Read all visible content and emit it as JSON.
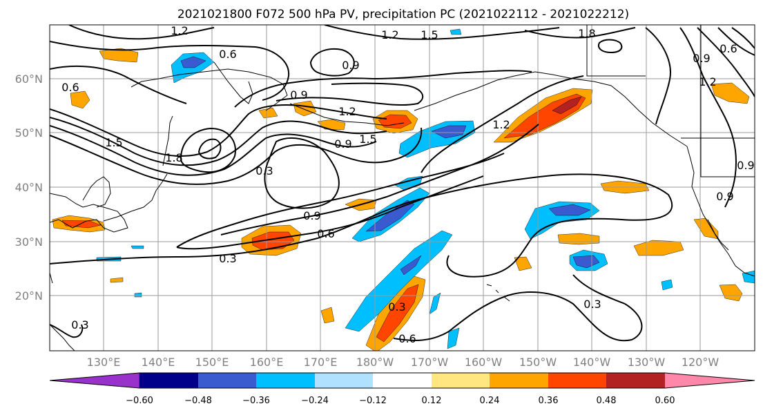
{
  "title": "2021021800 F072 500 hPa PV, precipitation PC (2021022112 - 2021022212)",
  "map": {
    "lon_ticks": [
      "130°E",
      "140°E",
      "150°E",
      "160°E",
      "170°E",
      "180°W",
      "170°W",
      "160°W",
      "150°W",
      "140°W",
      "130°W",
      "120°W"
    ],
    "lat_ticks": [
      "60°N",
      "50°N",
      "40°N",
      "30°N",
      "20°N"
    ]
  },
  "pv_contour_labels": [
    "1.2",
    "0.6",
    "1.2",
    "1.5",
    "1.8",
    "0.9",
    "0.6",
    "0.9",
    "1.2",
    "1.5",
    "0.9",
    "0.3",
    "1.2",
    "0.9",
    "0.6",
    "0.3",
    "0.3",
    "0.6",
    "0.3",
    "0.9",
    "0.6",
    "1.5",
    "1.8",
    "0.9",
    "0.9",
    "1.2",
    "0.3"
  ],
  "colorbar": {
    "colors": [
      "#9932cc",
      "#00008b",
      "#3a5bd0",
      "#00bfff",
      "#b0e2ff",
      "#ffffff",
      "#ffe680",
      "#ffa500",
      "#ff4500",
      "#b22222",
      "#ff88aa"
    ],
    "tick_labels": [
      "−0.60",
      "−0.48",
      "−0.36",
      "−0.24",
      "−0.12",
      "0.12",
      "0.24",
      "0.36",
      "0.48",
      "0.60"
    ]
  },
  "shading_colors": {
    "weak_pos": "#ffa500",
    "mid_pos": "#ff4500",
    "strong_pos": "#b22222",
    "weak_neg": "#00bfff",
    "mid_neg": "#3a5bd0",
    "light_neg": "#b0e2ff"
  }
}
